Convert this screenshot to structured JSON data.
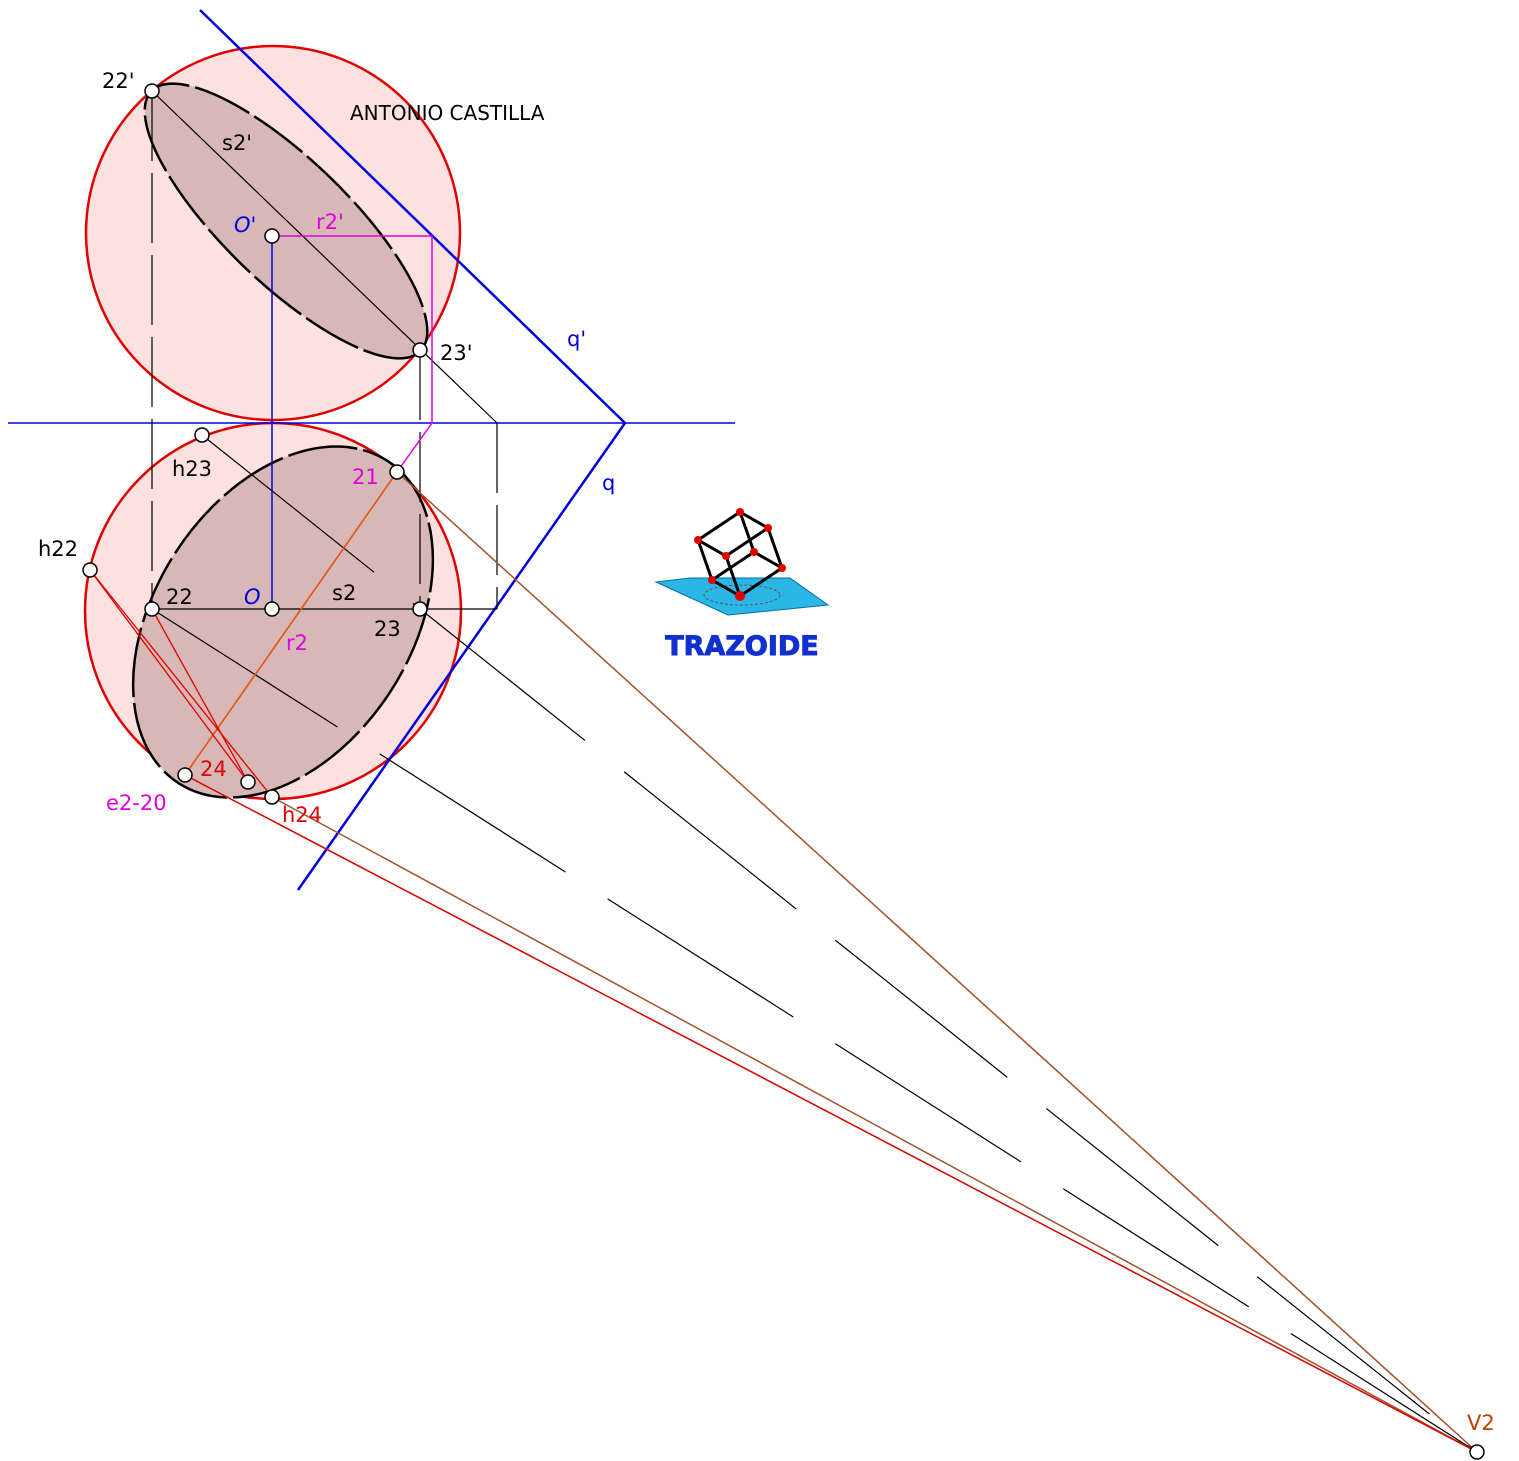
{
  "title": "ANTONIO CASTILLA",
  "logo": "TRAZOIDE",
  "labels": [
    "22'",
    "s2'",
    "O'",
    "r2'",
    "23'",
    "q'",
    "q",
    "h23",
    "21",
    "h22",
    "22",
    "O",
    "s2",
    "23",
    "r2",
    "24",
    "e2-20",
    "h24",
    "V2"
  ]
}
